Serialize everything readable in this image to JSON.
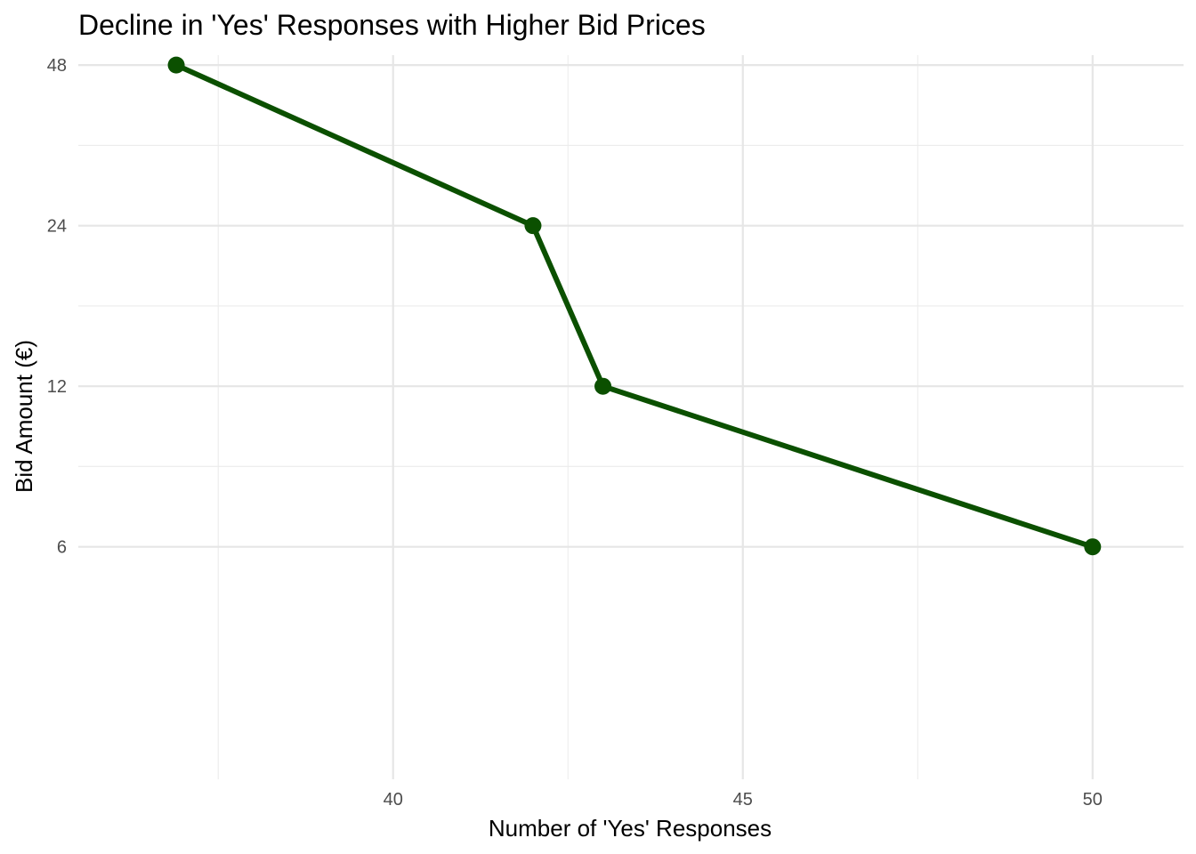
{
  "chart_data": {
    "type": "line",
    "title": "Decline in 'Yes' Responses with Higher Bid Prices",
    "xlabel": "Number of 'Yes' Responses",
    "ylabel": "Bid Amount (€)",
    "x": [
      36.9,
      42,
      43,
      50
    ],
    "y": [
      48,
      24,
      12,
      6
    ],
    "xlim": [
      35.5,
      51.3
    ],
    "ylim": [
      2.2,
      50.1
    ],
    "y_scale": "log",
    "x_ticks": [
      40,
      45,
      50
    ],
    "x_tick_labels": [
      "40",
      "45",
      "50"
    ],
    "x_minor_ticks": [
      37.5,
      42.5,
      47.5
    ],
    "y_ticks": [
      6,
      12,
      24,
      48
    ],
    "y_tick_labels": [
      "6",
      "12",
      "24",
      "48"
    ],
    "y_minor_ticks": [
      8.49,
      16.97,
      33.94
    ],
    "grid": true,
    "legend": "none",
    "line_color": "#0b5000",
    "marker_color": "#0b5000"
  }
}
